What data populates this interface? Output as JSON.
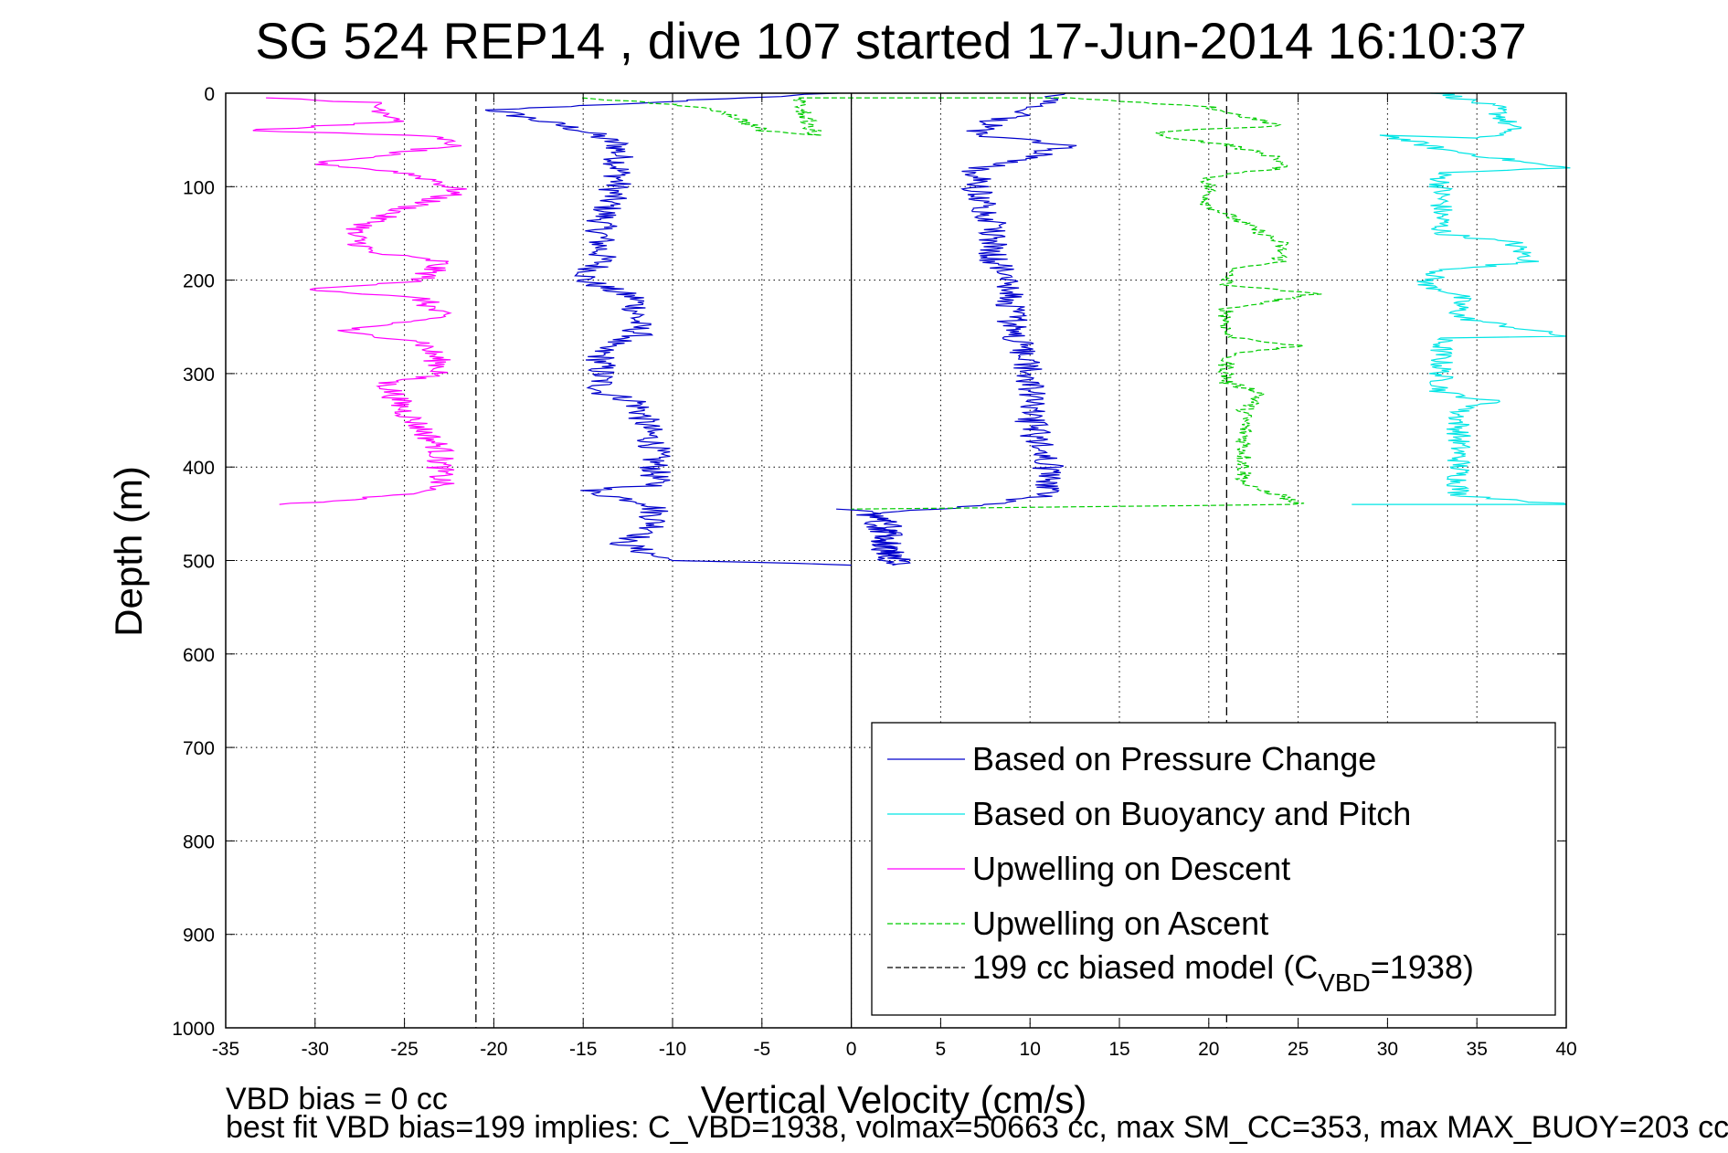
{
  "chart_data": {
    "type": "line",
    "title": "SG 524   REP14  , dive 107 started 17-Jun-2014 16:10:37",
    "xlabel": "Vertical Velocity (cm/s)",
    "ylabel": "Depth (m)",
    "xlim": [
      -35,
      40
    ],
    "ylim": [
      0,
      1000
    ],
    "y_reversed": true,
    "grid": true,
    "x_ticks": [
      -35,
      -30,
      -25,
      -20,
      -15,
      -10,
      -5,
      0,
      5,
      10,
      15,
      20,
      25,
      30,
      35,
      40
    ],
    "y_ticks": [
      0,
      100,
      200,
      300,
      400,
      500,
      600,
      700,
      800,
      900,
      1000
    ],
    "legend_position": "bottom-right",
    "legend": [
      {
        "label": "Based on Pressure Change",
        "color": "#0000cc",
        "style": "solid"
      },
      {
        "label": "Based on Buoyancy and Pitch",
        "color": "#00e5e5",
        "style": "solid"
      },
      {
        "label": "Upwelling on Descent",
        "color": "#ff00ff",
        "style": "solid"
      },
      {
        "label": "Upwelling on Ascent",
        "color": "#00cc00",
        "style": "dashed"
      },
      {
        "label": "199 cc biased model (C",
        "sub": "VBD",
        "suffix": "=1938)",
        "color": "#000000",
        "style": "dashed"
      }
    ],
    "series": [
      {
        "name": "Based on Pressure Change (descent)",
        "color": "#0000cc",
        "style": "solid",
        "noise": 0.9,
        "points": [
          [
            -1,
            0
          ],
          [
            -20,
            18
          ],
          [
            -15,
            40
          ],
          [
            -13,
            55
          ],
          [
            -13,
            90
          ],
          [
            -14,
            140
          ],
          [
            -14,
            180
          ],
          [
            -15,
            200
          ],
          [
            -12,
            220
          ],
          [
            -12,
            260
          ],
          [
            -14,
            270
          ],
          [
            -14,
            320
          ],
          [
            -12,
            330
          ],
          [
            -11,
            380
          ],
          [
            -11,
            420
          ],
          [
            -15,
            425
          ],
          [
            -11,
            440
          ],
          [
            -11,
            470
          ],
          [
            -13,
            480
          ],
          [
            -11,
            495
          ],
          [
            -10,
            500
          ],
          [
            -3,
            503
          ],
          [
            0,
            505
          ]
        ]
      },
      {
        "name": "Based on Pressure Change (ascent)",
        "color": "#0000cc",
        "style": "solid",
        "noise": 0.9,
        "points": [
          [
            0,
            445
          ],
          [
            2,
            455
          ],
          [
            2,
            505
          ],
          [
            3,
            500
          ],
          [
            2,
            490
          ],
          [
            2,
            470
          ],
          [
            1,
            450
          ],
          [
            8,
            440
          ],
          [
            11,
            430
          ],
          [
            11,
            400
          ],
          [
            10,
            350
          ],
          [
            10,
            300
          ],
          [
            9,
            250
          ],
          [
            9,
            200
          ],
          [
            8,
            180
          ],
          [
            8,
            140
          ],
          [
            7,
            100
          ],
          [
            7,
            80
          ],
          [
            10,
            70
          ],
          [
            12,
            55
          ],
          [
            7,
            45
          ],
          [
            8,
            30
          ],
          [
            10,
            20
          ],
          [
            11,
            10
          ],
          [
            12,
            0
          ]
        ]
      },
      {
        "name": "Based on Buoyancy and Pitch",
        "color": "#00e5e5",
        "style": "solid",
        "noise": 0.7,
        "points": [
          [
            33,
            0
          ],
          [
            36,
            15
          ],
          [
            37,
            40
          ],
          [
            35,
            48
          ],
          [
            30,
            45
          ],
          [
            33,
            60
          ],
          [
            38,
            75
          ],
          [
            40,
            80
          ],
          [
            33,
            85
          ],
          [
            33,
            100
          ],
          [
            33,
            150
          ],
          [
            37,
            160
          ],
          [
            38,
            180
          ],
          [
            33,
            190
          ],
          [
            32,
            205
          ],
          [
            34,
            215
          ],
          [
            34,
            240
          ],
          [
            40,
            260
          ],
          [
            33,
            262
          ],
          [
            33,
            300
          ],
          [
            33,
            320
          ],
          [
            36,
            330
          ],
          [
            34,
            340
          ],
          [
            34,
            380
          ],
          [
            34,
            400
          ],
          [
            34,
            420
          ],
          [
            34,
            430
          ],
          [
            37,
            435
          ],
          [
            40,
            440
          ],
          [
            28,
            440
          ]
        ]
      },
      {
        "name": "Upwelling on Descent",
        "color": "#ff00ff",
        "style": "solid",
        "noise": 0.8,
        "points": [
          [
            -32,
            5
          ],
          [
            -27,
            10
          ],
          [
            -25,
            30
          ],
          [
            -34,
            40
          ],
          [
            -24,
            45
          ],
          [
            -22,
            55
          ],
          [
            -26,
            65
          ],
          [
            -30,
            75
          ],
          [
            -25,
            85
          ],
          [
            -23,
            95
          ],
          [
            -22,
            105
          ],
          [
            -26,
            130
          ],
          [
            -28,
            150
          ],
          [
            -27,
            170
          ],
          [
            -23,
            180
          ],
          [
            -24,
            200
          ],
          [
            -30,
            210
          ],
          [
            -24,
            220
          ],
          [
            -23,
            240
          ],
          [
            -29,
            255
          ],
          [
            -24,
            265
          ],
          [
            -23,
            290
          ],
          [
            -23,
            300
          ],
          [
            -26,
            310
          ],
          [
            -25,
            340
          ],
          [
            -23,
            380
          ],
          [
            -23,
            420
          ],
          [
            -25,
            430
          ],
          [
            -32,
            440
          ]
        ]
      },
      {
        "name": "Upwelling on Ascent",
        "color": "#00cc00",
        "style": "dashed",
        "noise": 0.5,
        "points": [
          [
            -15,
            5
          ],
          [
            -10,
            12
          ],
          [
            -7,
            20
          ],
          [
            -5,
            40
          ],
          [
            -2,
            45
          ],
          [
            -3,
            5
          ],
          [
            12,
            5
          ],
          [
            20,
            15
          ],
          [
            24,
            35
          ],
          [
            18,
            40
          ],
          [
            17,
            45
          ],
          [
            21,
            55
          ],
          [
            24,
            70
          ],
          [
            24,
            80
          ],
          [
            20,
            90
          ],
          [
            20,
            120
          ],
          [
            22,
            140
          ],
          [
            24,
            160
          ],
          [
            24,
            180
          ],
          [
            21,
            190
          ],
          [
            21,
            205
          ],
          [
            26,
            215
          ],
          [
            21,
            230
          ],
          [
            21,
            260
          ],
          [
            25,
            270
          ],
          [
            21,
            280
          ],
          [
            21,
            310
          ],
          [
            23,
            320
          ],
          [
            22,
            340
          ],
          [
            22,
            380
          ],
          [
            22,
            420
          ],
          [
            24,
            430
          ],
          [
            25,
            440
          ],
          [
            0,
            445
          ]
        ]
      }
    ],
    "reference_lines": [
      {
        "name": "199 cc biased model",
        "x": -21,
        "color": "#000000",
        "style": "dashed"
      },
      {
        "name": "199 cc biased model",
        "x": 21,
        "color": "#000000",
        "style": "dashed"
      },
      {
        "name": "zero line",
        "x": 0,
        "color": "#000000",
        "style": "solid"
      }
    ],
    "notes": [
      "VBD bias = 0 cc",
      "best fit VBD bias=199 implies: C_VBD=1938, volmax=50663 cc, max SM_CC=353, max MAX_BUOY=203 cc"
    ]
  }
}
